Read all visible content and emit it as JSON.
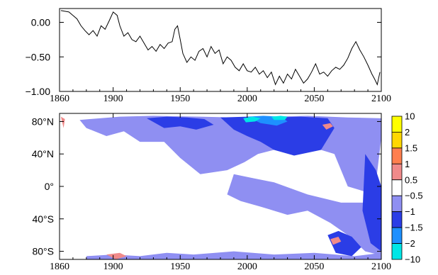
{
  "chart_data": [
    {
      "type": "line",
      "title": "",
      "xlabel": "",
      "ylabel": "",
      "xlim": [
        1860,
        2100
      ],
      "ylim": [
        -1.0,
        0.2
      ],
      "x_ticks": [
        1860,
        1900,
        1950,
        2000,
        2050,
        2100
      ],
      "x_tick_labels": [
        "1860",
        "1900",
        "1950",
        "2000",
        "2050",
        "2100"
      ],
      "y_ticks": [
        0.0,
        -0.5,
        -1.0
      ],
      "y_tick_labels": [
        "0.00",
        "−0.50",
        "−1.00"
      ],
      "series": [
        {
          "x": [
            1861,
            1864,
            1867,
            1870,
            1873,
            1876,
            1879,
            1882,
            1885,
            1888,
            1891,
            1894,
            1897,
            1900,
            1903,
            1905,
            1908,
            1911,
            1914,
            1917,
            1920,
            1923,
            1926,
            1929,
            1932,
            1935,
            1938,
            1941,
            1944,
            1946,
            1948,
            1950,
            1952,
            1955,
            1958,
            1961,
            1964,
            1967,
            1970,
            1973,
            1976,
            1979,
            1982,
            1985,
            1988,
            1991,
            1994,
            1997,
            2000,
            2003,
            2006,
            2009,
            2012,
            2015,
            2018,
            2021,
            2024,
            2027,
            2030,
            2033,
            2036,
            2039,
            2042,
            2045,
            2048,
            2051,
            2054,
            2057,
            2060,
            2063,
            2066,
            2069,
            2072,
            2075,
            2078,
            2081,
            2084,
            2087,
            2090,
            2093,
            2095,
            2097,
            2099
          ],
          "y": [
            0.17,
            0.16,
            0.15,
            0.1,
            0.05,
            -0.05,
            -0.12,
            -0.18,
            -0.12,
            -0.2,
            -0.05,
            -0.1,
            0.02,
            0.15,
            0.1,
            -0.05,
            -0.2,
            -0.15,
            -0.25,
            -0.28,
            -0.2,
            -0.3,
            -0.4,
            -0.35,
            -0.42,
            -0.32,
            -0.38,
            -0.3,
            -0.28,
            -0.1,
            -0.05,
            -0.25,
            -0.45,
            -0.58,
            -0.5,
            -0.55,
            -0.42,
            -0.38,
            -0.5,
            -0.35,
            -0.45,
            -0.4,
            -0.6,
            -0.5,
            -0.55,
            -0.65,
            -0.7,
            -0.6,
            -0.7,
            -0.72,
            -0.65,
            -0.75,
            -0.7,
            -0.8,
            -0.72,
            -0.9,
            -0.78,
            -0.88,
            -0.75,
            -0.82,
            -0.68,
            -0.78,
            -0.88,
            -0.82,
            -0.72,
            -0.6,
            -0.75,
            -0.72,
            -0.78,
            -0.7,
            -0.65,
            -0.68,
            -0.62,
            -0.52,
            -0.38,
            -0.28,
            -0.4,
            -0.5,
            -0.62,
            -0.75,
            -0.82,
            -0.9,
            -0.72
          ]
        }
      ]
    },
    {
      "type": "heatmap",
      "title": "",
      "xlabel": "",
      "ylabel": "",
      "xlim": [
        1860,
        2100
      ],
      "ylim": [
        -90,
        90
      ],
      "x_ticks": [
        1860,
        1900,
        1950,
        2000,
        2050,
        2100
      ],
      "x_tick_labels": [
        "1860",
        "1900",
        "1950",
        "2000",
        "2050",
        "2100"
      ],
      "y_ticks": [
        80,
        40,
        0,
        -40,
        -80
      ],
      "y_tick_labels": [
        "80°N",
        "40°N",
        "0°",
        "40°S",
        "80°S"
      ],
      "colorbar": {
        "labels": [
          "10",
          "2",
          "1.5",
          "1",
          "0.5",
          "−0.5",
          "−1",
          "−1.5",
          "−2",
          "−10"
        ],
        "colors": [
          "#ffff00",
          "#ffd700",
          "#ff7f4e",
          "#f08a8a",
          "#ffffff",
          "#8f8ff2",
          "#2b3de6",
          "#1e90ff",
          "#00e6e6"
        ]
      },
      "regions": [
        {
          "level": -0.5,
          "x": [
            1875,
            1905,
            1930,
            1965,
            1990,
            2020,
            2045,
            2075,
            2100,
            2100,
            2095,
            2075,
            2065,
            2045,
            2020,
            2008,
            1998,
            1985,
            1965,
            1950,
            1938,
            1920,
            1908,
            1895,
            1880,
            1875
          ],
          "y": [
            82,
            86,
            87,
            86,
            85,
            86,
            87,
            85,
            84,
            60,
            -10,
            0,
            40,
            50,
            45,
            40,
            30,
            20,
            15,
            35,
            55,
            55,
            68,
            62,
            72,
            82
          ]
        },
        {
          "level": -0.5,
          "x": [
            1990,
            2005,
            2020,
            2045,
            2070,
            2092,
            2100,
            2100,
            2088,
            2075,
            2062,
            2045,
            2030,
            2010,
            1995,
            1985,
            1990
          ],
          "y": [
            15,
            10,
            5,
            -10,
            -20,
            -20,
            -10,
            -85,
            -80,
            -60,
            -45,
            -30,
            -35,
            -25,
            -18,
            -10,
            15
          ]
        },
        {
          "level": -0.5,
          "x": [
            1880,
            1900,
            1920,
            1940,
            1960,
            1990,
            2020,
            2050,
            2080,
            2100,
            2100,
            2080,
            2050,
            2020,
            1990,
            1960,
            1940,
            1920,
            1900,
            1880
          ],
          "y": [
            -86,
            -84,
            -86,
            -82,
            -84,
            -80,
            -84,
            -82,
            -86,
            -82,
            -90,
            -90,
            -90,
            -90,
            -90,
            -90,
            -90,
            -90,
            -90,
            -90
          ]
        },
        {
          "level": -1,
          "x": [
            1925,
            1940,
            1955,
            1968,
            1975,
            1962,
            1950,
            1938,
            1925
          ],
          "y": [
            84,
            86,
            85,
            83,
            76,
            70,
            74,
            72,
            84
          ]
        },
        {
          "level": -1,
          "x": [
            1980,
            2000,
            2020,
            2040,
            2060,
            2065,
            2055,
            2035,
            2020,
            2010,
            2000,
            1990,
            1980
          ],
          "y": [
            85,
            86,
            85,
            86,
            84,
            72,
            45,
            38,
            45,
            55,
            62,
            70,
            85
          ]
        },
        {
          "level": -1,
          "x": [
            2060,
            2068,
            2078,
            2085,
            2078,
            2066,
            2060
          ],
          "y": [
            -60,
            -55,
            -62,
            -75,
            -86,
            -82,
            -60
          ]
        },
        {
          "level": -1,
          "x": [
            2088,
            2096,
            2100,
            2100,
            2092,
            2086,
            2088
          ],
          "y": [
            40,
            20,
            0,
            -80,
            -70,
            -30,
            40
          ]
        },
        {
          "level": -1.5,
          "x": [
            2000,
            2012,
            2025,
            2030,
            2022,
            2010,
            2000
          ],
          "y": [
            86,
            87,
            86,
            80,
            75,
            78,
            86
          ]
        },
        {
          "level": -2,
          "x": [
            1997,
            2004,
            2010,
            2006,
            1999,
            1997
          ],
          "y": [
            84,
            86,
            84,
            80,
            79,
            84
          ]
        },
        {
          "level": -2,
          "x": [
            2018,
            2025,
            2030,
            2028,
            2020,
            2018
          ],
          "y": [
            86,
            87,
            86,
            82,
            82,
            86
          ]
        },
        {
          "level": 0.5,
          "x": [
            2056,
            2062,
            2064,
            2059,
            2056
          ],
          "y": [
            76,
            78,
            74,
            70,
            76
          ]
        },
        {
          "level": 0.5,
          "x": [
            2062,
            2068,
            2070,
            2064,
            2062
          ],
          "y": [
            -65,
            -62,
            -68,
            -72,
            -65
          ]
        },
        {
          "level": 0.5,
          "x": [
            1861,
            1864,
            1863,
            1861
          ],
          "y": [
            86,
            83,
            72,
            86
          ]
        },
        {
          "level": 0.5,
          "x": [
            1895,
            1905,
            1910,
            1902,
            1895
          ],
          "y": [
            -84,
            -82,
            -86,
            -90,
            -84
          ]
        }
      ]
    }
  ]
}
